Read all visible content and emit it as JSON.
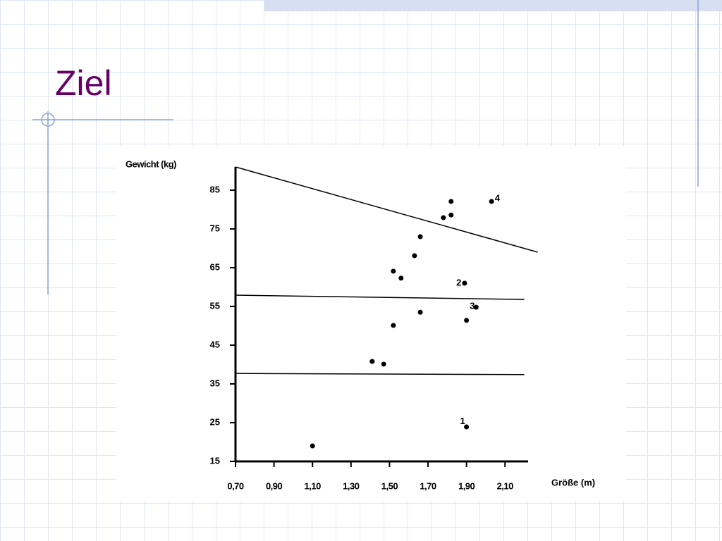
{
  "slide_title": "Ziel",
  "chart_data": {
    "type": "scatter",
    "y_label": "Gewicht (kg)",
    "x_label": "Größe (m)",
    "color": "#000000",
    "xlim": [
      0.7,
      2.22
    ],
    "ylim": [
      15,
      91
    ],
    "xticks": [
      {
        "value": 0.7,
        "label": "0,70"
      },
      {
        "value": 0.9,
        "label": "0,90"
      },
      {
        "value": 1.1,
        "label": "1,10"
      },
      {
        "value": 1.3,
        "label": "1,30"
      },
      {
        "value": 1.5,
        "label": "1,50"
      },
      {
        "value": 1.7,
        "label": "1,70"
      },
      {
        "value": 1.9,
        "label": "1,90"
      },
      {
        "value": 2.1,
        "label": "2,10"
      }
    ],
    "yticks": [
      15,
      25,
      35,
      45,
      55,
      65,
      75,
      85
    ],
    "x": [
      1.1,
      1.41,
      1.47,
      1.52,
      1.52,
      1.56,
      1.63,
      1.66,
      1.66,
      1.78,
      1.82,
      1.82,
      1.9,
      1.9,
      2.03,
      1.89,
      1.95
    ],
    "y": [
      19.0,
      40.8,
      40.1,
      50.1,
      64.1,
      62.3,
      68.1,
      53.5,
      73.0,
      77.9,
      82.1,
      78.6,
      51.4,
      23.9,
      82.1,
      61.0,
      54.8
    ],
    "lines": [
      {
        "x": [
          0.7,
          2.27
        ],
        "y": [
          91.0,
          69.0
        ]
      },
      {
        "x": [
          0.7,
          2.2
        ],
        "y": [
          57.9,
          56.8
        ]
      },
      {
        "x": [
          0.7,
          2.2
        ],
        "y": [
          37.7,
          37.4
        ]
      }
    ],
    "annotations": [
      {
        "text": "1",
        "x": 1.88,
        "y": 25.3
      },
      {
        "text": "2",
        "x": 1.86,
        "y": 61.0
      },
      {
        "text": "3",
        "x": 1.93,
        "y": 55.0
      },
      {
        "text": "4",
        "x": 2.06,
        "y": 82.8
      }
    ]
  }
}
